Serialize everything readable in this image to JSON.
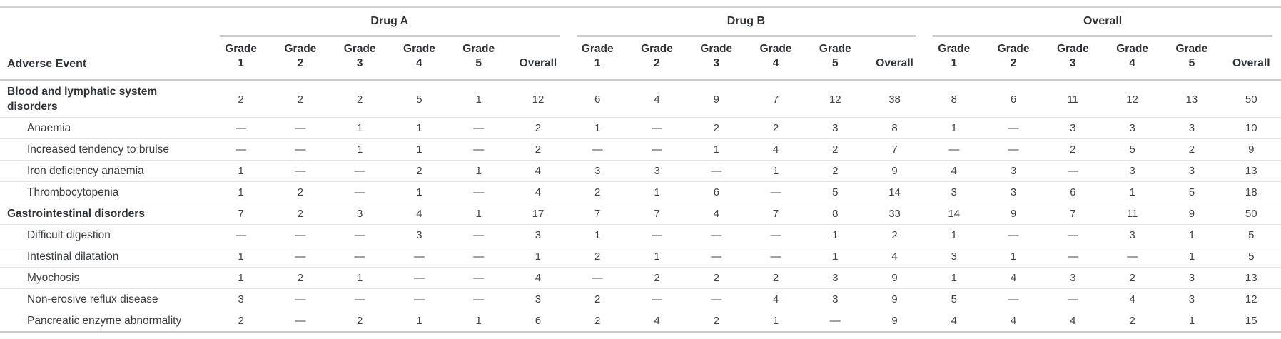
{
  "table": {
    "row_header_label": "Adverse Event",
    "groups": [
      "Drug A",
      "Drug B",
      "Overall"
    ],
    "sub_columns": [
      "Grade 1",
      "Grade 2",
      "Grade 3",
      "Grade 4",
      "Grade 5",
      "Overall"
    ],
    "rows": [
      {
        "label": "Blood and lymphatic system disorders",
        "group_header": true,
        "values": [
          [
            "2",
            "2",
            "2",
            "5",
            "1",
            "12"
          ],
          [
            "6",
            "4",
            "9",
            "7",
            "12",
            "38"
          ],
          [
            "8",
            "6",
            "11",
            "12",
            "13",
            "50"
          ]
        ]
      },
      {
        "label": "Anaemia",
        "group_header": false,
        "values": [
          [
            "—",
            "—",
            "1",
            "1",
            "—",
            "2"
          ],
          [
            "1",
            "—",
            "2",
            "2",
            "3",
            "8"
          ],
          [
            "1",
            "—",
            "3",
            "3",
            "3",
            "10"
          ]
        ]
      },
      {
        "label": "Increased tendency to bruise",
        "group_header": false,
        "values": [
          [
            "—",
            "—",
            "1",
            "1",
            "—",
            "2"
          ],
          [
            "—",
            "—",
            "1",
            "4",
            "2",
            "7"
          ],
          [
            "—",
            "—",
            "2",
            "5",
            "2",
            "9"
          ]
        ]
      },
      {
        "label": "Iron deficiency anaemia",
        "group_header": false,
        "values": [
          [
            "1",
            "—",
            "—",
            "2",
            "1",
            "4"
          ],
          [
            "3",
            "3",
            "—",
            "1",
            "2",
            "9"
          ],
          [
            "4",
            "3",
            "—",
            "3",
            "3",
            "13"
          ]
        ]
      },
      {
        "label": "Thrombocytopenia",
        "group_header": false,
        "values": [
          [
            "1",
            "2",
            "—",
            "1",
            "—",
            "4"
          ],
          [
            "2",
            "1",
            "6",
            "—",
            "5",
            "14"
          ],
          [
            "3",
            "3",
            "6",
            "1",
            "5",
            "18"
          ]
        ]
      },
      {
        "label": "Gastrointestinal disorders",
        "group_header": true,
        "values": [
          [
            "7",
            "2",
            "3",
            "4",
            "1",
            "17"
          ],
          [
            "7",
            "7",
            "4",
            "7",
            "8",
            "33"
          ],
          [
            "14",
            "9",
            "7",
            "11",
            "9",
            "50"
          ]
        ]
      },
      {
        "label": "Difficult digestion",
        "group_header": false,
        "values": [
          [
            "—",
            "—",
            "—",
            "3",
            "—",
            "3"
          ],
          [
            "1",
            "—",
            "—",
            "—",
            "1",
            "2"
          ],
          [
            "1",
            "—",
            "—",
            "3",
            "1",
            "5"
          ]
        ]
      },
      {
        "label": "Intestinal dilatation",
        "group_header": false,
        "values": [
          [
            "1",
            "—",
            "—",
            "—",
            "—",
            "1"
          ],
          [
            "2",
            "1",
            "—",
            "—",
            "1",
            "4"
          ],
          [
            "3",
            "1",
            "—",
            "—",
            "1",
            "5"
          ]
        ]
      },
      {
        "label": "Myochosis",
        "group_header": false,
        "values": [
          [
            "1",
            "2",
            "1",
            "—",
            "—",
            "4"
          ],
          [
            "—",
            "2",
            "2",
            "2",
            "3",
            "9"
          ],
          [
            "1",
            "4",
            "3",
            "2",
            "3",
            "13"
          ]
        ]
      },
      {
        "label": "Non-erosive reflux disease",
        "group_header": false,
        "values": [
          [
            "3",
            "—",
            "—",
            "—",
            "—",
            "3"
          ],
          [
            "2",
            "—",
            "—",
            "4",
            "3",
            "9"
          ],
          [
            "5",
            "—",
            "—",
            "4",
            "3",
            "12"
          ]
        ]
      },
      {
        "label": "Pancreatic enzyme abnormality",
        "group_header": false,
        "values": [
          [
            "2",
            "—",
            "2",
            "1",
            "1",
            "6"
          ],
          [
            "2",
            "4",
            "2",
            "1",
            "—",
            "9"
          ],
          [
            "4",
            "4",
            "4",
            "2",
            "1",
            "15"
          ]
        ]
      }
    ]
  }
}
